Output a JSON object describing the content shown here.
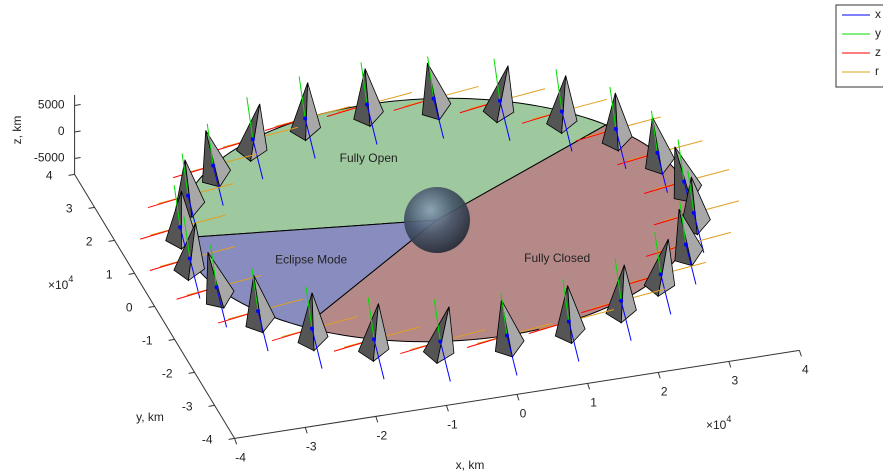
{
  "chart_data": {
    "type": "orbit3d",
    "xlabel": "x, km",
    "ylabel": "y, km",
    "zlabel": "z, km",
    "x_multiplier": {
      "base": "×10",
      "power": "4"
    },
    "y_multiplier": {
      "base": "×10",
      "power": "4"
    },
    "xlim": [
      -4,
      4
    ],
    "ylim": [
      -4,
      4
    ],
    "zlim": [
      -8000,
      7000
    ],
    "xticks": [
      -4,
      -3,
      -2,
      -1,
      0,
      1,
      2,
      3,
      4
    ],
    "yticks": [
      -4,
      -3,
      -2,
      -1,
      0,
      1,
      2,
      3,
      4
    ],
    "zticks": [
      -5000,
      0,
      5000
    ],
    "sectors": [
      {
        "name": "Fully Open",
        "color": "#93c293",
        "angles": [
          33,
          170
        ]
      },
      {
        "name": "Eclipse Mode",
        "color": "#7b80b7",
        "angles": [
          170,
          223
        ]
      },
      {
        "name": "Fully Closed",
        "color": "#ae7c7c",
        "angles": [
          223,
          393
        ]
      }
    ],
    "satellites": {
      "x": [
        3.5,
        3.38,
        3.03,
        2.47,
        1.75,
        0.91,
        0,
        -0.91,
        -1.75,
        -2.47,
        -3.03,
        -3.38,
        -3.5,
        -3.38,
        -3.03,
        -2.47,
        -1.75,
        -0.91,
        0,
        0.91,
        1.75,
        2.47,
        3.03,
        3.38
      ],
      "y": [
        0,
        0.91,
        1.75,
        2.47,
        3.03,
        3.38,
        3.5,
        3.38,
        3.03,
        2.47,
        1.75,
        0.91,
        0,
        -0.91,
        -1.75,
        -2.47,
        -3.03,
        -3.38,
        -3.5,
        -3.38,
        -3.03,
        -2.47,
        -1.75,
        -0.91
      ],
      "z": [
        0,
        0,
        0,
        0,
        0,
        0,
        0,
        0,
        0,
        0,
        0,
        0,
        0,
        0,
        0,
        0,
        0,
        0,
        0,
        0,
        0,
        0,
        0,
        0
      ]
    },
    "series": [
      {
        "name": "x",
        "color": "#0000ff"
      },
      {
        "name": "y",
        "color": "#00dd00"
      },
      {
        "name": "z",
        "color": "#ff0000"
      },
      {
        "name": "r",
        "color": "#e0a020"
      }
    ],
    "legend": "top-right"
  }
}
